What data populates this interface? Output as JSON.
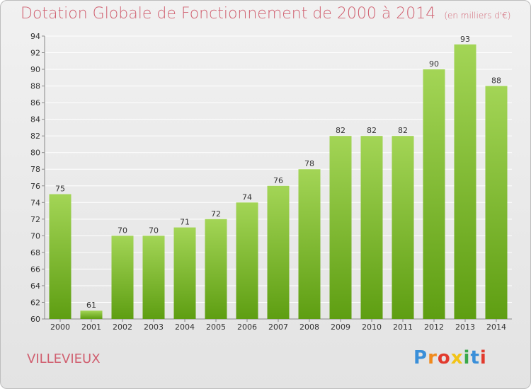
{
  "title": "Dotation Globale de Fonctionnement de 2000 à 2014",
  "subtitle": "(en milliers d'€)",
  "commune": "VILLEVIEUX",
  "logo": {
    "text": "Proxiti",
    "colors": [
      "#3a8fd9",
      "#f08a1c",
      "#e23a2d",
      "#f2c418",
      "#3aa84a",
      "#3a8fd9",
      "#e23a2d"
    ]
  },
  "colors": {
    "bar_top": "#a3d556",
    "bar_bottom": "#5e9e12",
    "title": "#d06070",
    "grid": "#ffffff"
  },
  "chart_data": {
    "type": "bar",
    "categories": [
      "2000",
      "2001",
      "2002",
      "2003",
      "2004",
      "2005",
      "2006",
      "2007",
      "2008",
      "2009",
      "2010",
      "2011",
      "2012",
      "2013",
      "2014"
    ],
    "values": [
      75,
      61,
      70,
      70,
      71,
      72,
      74,
      76,
      78,
      82,
      82,
      82,
      90,
      93,
      88
    ],
    "ylim": [
      60,
      94
    ],
    "yticks": [
      60,
      62,
      64,
      66,
      68,
      70,
      72,
      74,
      76,
      78,
      80,
      82,
      84,
      86,
      88,
      90,
      92,
      94
    ],
    "grid": true,
    "xlabel": "",
    "ylabel": ""
  }
}
